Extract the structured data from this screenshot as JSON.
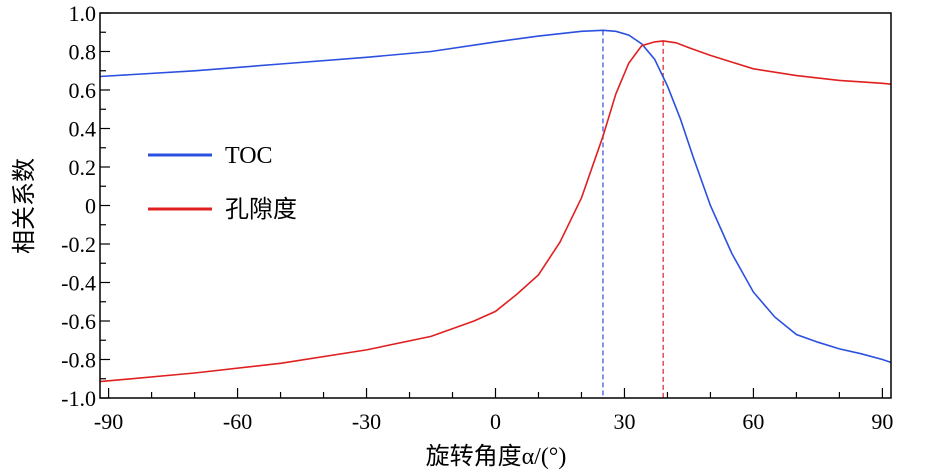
{
  "chart_data": {
    "type": "line",
    "xlabel": "旋转角度α/(°)",
    "ylabel": "相关系数",
    "xlim": [
      -92,
      92
    ],
    "ylim": [
      -1.0,
      1.0
    ],
    "xticks": [
      -90,
      -60,
      -30,
      0,
      30,
      60,
      90
    ],
    "yticks": [
      1.0,
      0.8,
      0.6,
      0.4,
      0.2,
      0,
      -0.2,
      -0.4,
      -0.6,
      -0.8,
      -1.0
    ],
    "ytick_labels": [
      "1.0",
      "0.8",
      "0.6",
      "0.4",
      "0.2",
      "0",
      "-0.2",
      "-0.4",
      "-0.6",
      "-0.8",
      "-1.0"
    ],
    "grid": false,
    "legend_position": "center-left",
    "series": [
      {
        "name": "TOC",
        "color": "#2b50e0",
        "x": [
          -92,
          -70,
          -50,
          -30,
          -15,
          0,
          10,
          20,
          25,
          28,
          31,
          34,
          37,
          40,
          43,
          46,
          50,
          55,
          60,
          65,
          70,
          75,
          80,
          85,
          90,
          92
        ],
        "y": [
          0.67,
          0.7,
          0.735,
          0.77,
          0.8,
          0.85,
          0.88,
          0.905,
          0.91,
          0.905,
          0.885,
          0.84,
          0.76,
          0.62,
          0.45,
          0.25,
          0.0,
          -0.25,
          -0.45,
          -0.58,
          -0.67,
          -0.71,
          -0.745,
          -0.77,
          -0.8,
          -0.815
        ]
      },
      {
        "name": "孔隙度",
        "color": "#e02020",
        "x": [
          -92,
          -70,
          -50,
          -30,
          -15,
          -5,
          0,
          5,
          10,
          15,
          20,
          25,
          28,
          31,
          34,
          37,
          39,
          42,
          45,
          50,
          55,
          60,
          70,
          80,
          90,
          92
        ],
        "y": [
          -0.915,
          -0.87,
          -0.82,
          -0.75,
          -0.68,
          -0.6,
          -0.55,
          -0.46,
          -0.36,
          -0.19,
          0.04,
          0.36,
          0.58,
          0.74,
          0.83,
          0.85,
          0.855,
          0.845,
          0.82,
          0.78,
          0.745,
          0.71,
          0.675,
          0.65,
          0.635,
          0.63
        ]
      }
    ],
    "vlines": [
      {
        "x": 25,
        "color": "#2b50e0"
      },
      {
        "x": 39,
        "color": "#e02020"
      }
    ]
  }
}
